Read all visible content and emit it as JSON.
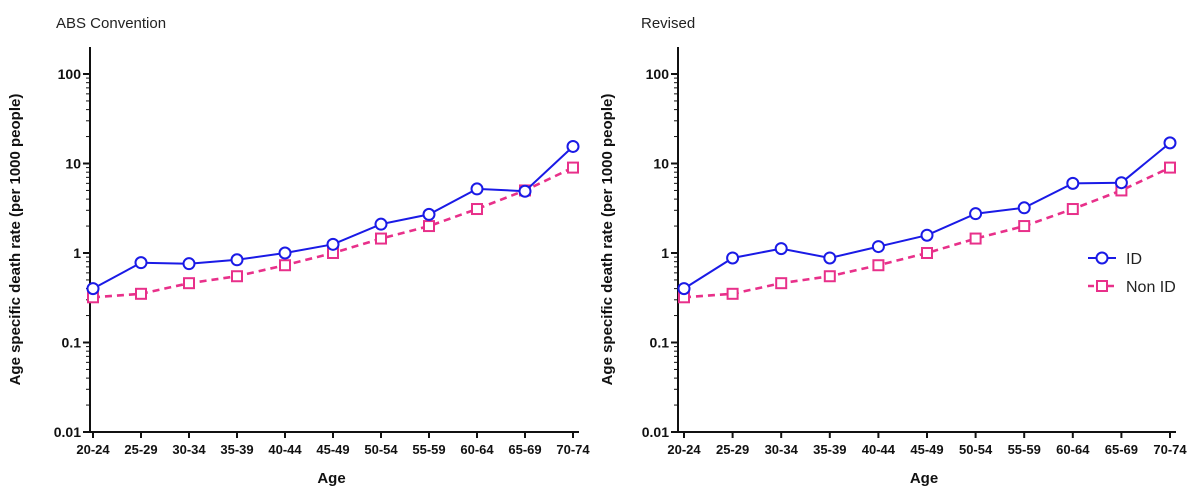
{
  "colors": {
    "ID": "#1a1ae6",
    "Non ID": "#e8308a",
    "axis": "#111111"
  },
  "chart_data": [
    {
      "type": "line",
      "title": "ABS Convention",
      "xlabel": "Age",
      "ylabel": "Age specific death rate (per 1000 people)",
      "yscale": "log",
      "ylim": [
        0.01,
        200
      ],
      "yticks": [
        "100",
        "10",
        "1",
        "0.1",
        "0.01"
      ],
      "categories": [
        "20-24",
        "25-29",
        "30-34",
        "35-39",
        "40-44",
        "45-49",
        "50-54",
        "55-59",
        "60-64",
        "65-69",
        "70-74"
      ],
      "series": [
        {
          "name": "ID",
          "marker": "circle",
          "line": "solid",
          "values": [
            0.4,
            0.78,
            0.76,
            0.84,
            1.0,
            1.25,
            2.1,
            2.7,
            5.2,
            4.9,
            15.5
          ]
        },
        {
          "name": "Non ID",
          "marker": "square",
          "line": "dashed",
          "values": [
            0.32,
            0.35,
            0.46,
            0.55,
            0.73,
            1.0,
            1.45,
            2.0,
            3.1,
            5.0,
            9.0
          ]
        }
      ],
      "legend": null
    },
    {
      "type": "line",
      "title": "Revised",
      "xlabel": "Age",
      "ylabel": "Age specific death rate (per 1000 people)",
      "yscale": "log",
      "ylim": [
        0.01,
        200
      ],
      "yticks": [
        "100",
        "10",
        "1",
        "0.1",
        "0.01"
      ],
      "categories": [
        "20-24",
        "25-29",
        "30-34",
        "35-39",
        "40-44",
        "45-49",
        "50-54",
        "55-59",
        "60-64",
        "65-69",
        "70-74"
      ],
      "series": [
        {
          "name": "ID",
          "marker": "circle",
          "line": "solid",
          "values": [
            0.4,
            0.88,
            1.12,
            0.88,
            1.18,
            1.58,
            2.75,
            3.2,
            6.0,
            6.1,
            17.0
          ]
        },
        {
          "name": "Non ID",
          "marker": "square",
          "line": "dashed",
          "values": [
            0.32,
            0.35,
            0.46,
            0.55,
            0.73,
            1.0,
            1.45,
            2.0,
            3.1,
            5.0,
            9.0
          ]
        }
      ],
      "legend": {
        "position": "right",
        "entries": [
          "ID",
          "Non ID"
        ]
      }
    }
  ]
}
